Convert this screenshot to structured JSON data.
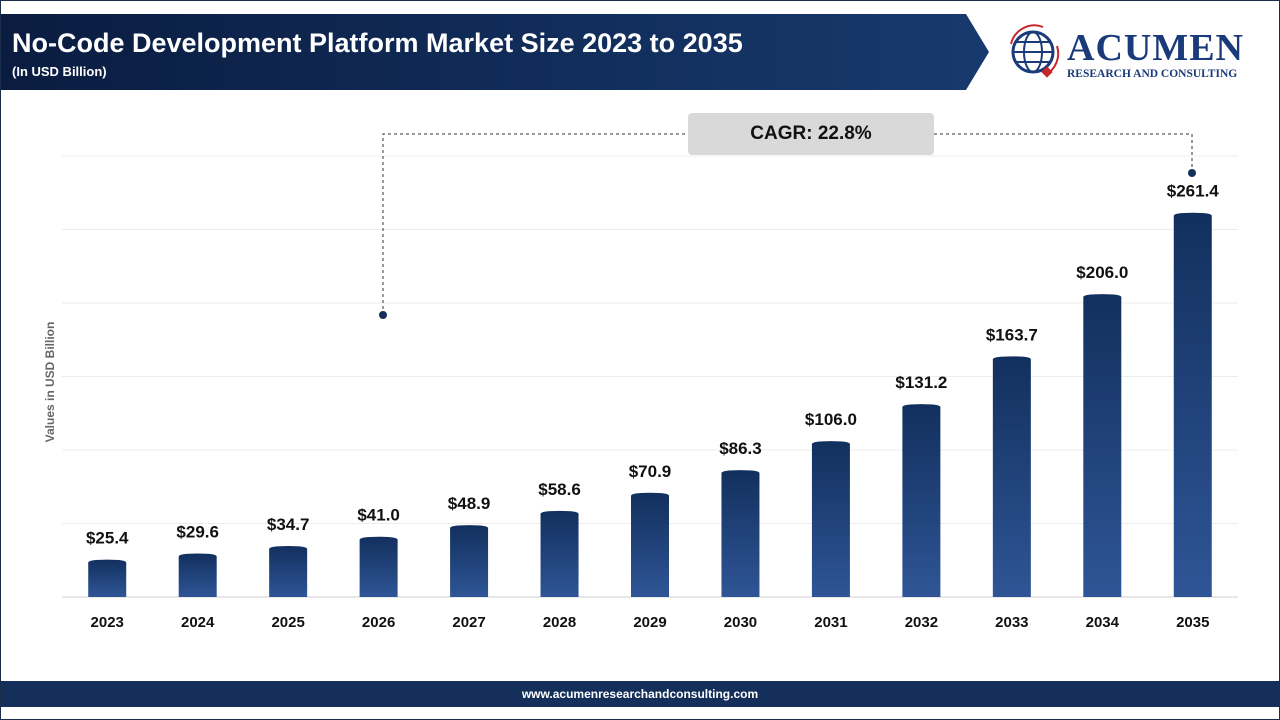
{
  "header": {
    "title": "No-Code Development Platform Market Size 2023 to 2035",
    "subtitle": "(In USD Billion)",
    "color": "#0c1f45"
  },
  "logo": {
    "name": "ACUMEN",
    "tagline": "RESEARCH AND CONSULTING"
  },
  "annotation": {
    "cagr": "CAGR: 22.8%"
  },
  "footer": {
    "url": "www.acumenresearchandconsulting.com"
  },
  "chart_data": {
    "type": "bar",
    "title": "No-Code Development Platform Market Size 2023 to 2035",
    "ylabel": "Values in USD Billion",
    "xlabel": "",
    "ylim": [
      0,
      300
    ],
    "grid": true,
    "grid_step": 50,
    "bar_color_top": "#12305e",
    "bar_color_bottom": "#2f5596",
    "categories": [
      "2023",
      "2024",
      "2025",
      "2026",
      "2027",
      "2028",
      "2029",
      "2030",
      "2031",
      "2032",
      "2033",
      "2034",
      "2035"
    ],
    "values": [
      25.4,
      29.6,
      34.7,
      41.0,
      48.9,
      58.6,
      70.9,
      86.3,
      106.0,
      131.2,
      163.7,
      206.0,
      261.4
    ],
    "labels": [
      "$25.4",
      "$29.6",
      "$34.7",
      "$41.0",
      "$48.9",
      "$58.6",
      "$70.9",
      "$86.3",
      "$106.0",
      "$131.2",
      "$163.7",
      "$206.0",
      "$261.4"
    ]
  }
}
